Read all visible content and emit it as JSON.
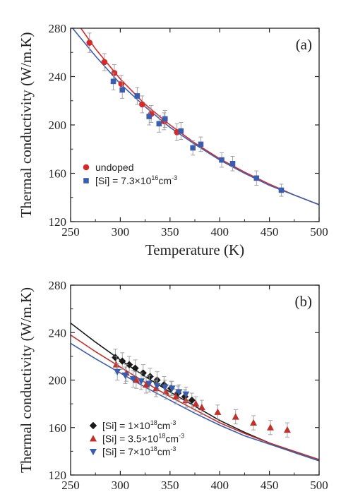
{
  "figure": {
    "ylabel": "Thermal conductivity (W/m.K)"
  },
  "chart_data": [
    {
      "type": "scatter",
      "panel_label": "(a)",
      "xlabel": "Temperature (K)",
      "ylabel": "Thermal conductivity (W/m.K)",
      "xlim": [
        250,
        500
      ],
      "ylim": [
        120,
        280
      ],
      "xticks": [
        250,
        300,
        350,
        400,
        450,
        500
      ],
      "yticks": [
        120,
        160,
        200,
        240,
        280
      ],
      "legend_position": "lower-left",
      "series": [
        {
          "name": "undoped",
          "marker": "circle",
          "color": "#d42a2a",
          "points": [
            {
              "x": 269,
              "y": 268,
              "err": 8
            },
            {
              "x": 284,
              "y": 252,
              "err": 7
            },
            {
              "x": 294,
              "y": 243,
              "err": 7
            },
            {
              "x": 301,
              "y": 234,
              "err": 7
            },
            {
              "x": 322,
              "y": 217,
              "err": 7
            },
            {
              "x": 331,
              "y": 209,
              "err": 7
            },
            {
              "x": 344,
              "y": 203,
              "err": 7
            },
            {
              "x": 357,
              "y": 194,
              "err": 7
            }
          ]
        },
        {
          "name_parts": [
            "[Si] = 7.3×10",
            "16",
            "cm",
            "-3"
          ],
          "marker": "square",
          "color": "#3a5dae",
          "points": [
            {
              "x": 293,
              "y": 236,
              "err": 7
            },
            {
              "x": 302,
              "y": 229,
              "err": 7
            },
            {
              "x": 317,
              "y": 224,
              "err": 7
            },
            {
              "x": 329,
              "y": 207,
              "err": 7
            },
            {
              "x": 339,
              "y": 201,
              "err": 7
            },
            {
              "x": 345,
              "y": 205,
              "err": 7
            },
            {
              "x": 361,
              "y": 195,
              "err": 7
            },
            {
              "x": 373,
              "y": 181,
              "err": 6
            },
            {
              "x": 381,
              "y": 184,
              "err": 6
            },
            {
              "x": 402,
              "y": 171,
              "err": 6
            },
            {
              "x": 413,
              "y": 168,
              "err": 6
            },
            {
              "x": 437,
              "y": 156,
              "err": 6
            },
            {
              "x": 462,
              "y": 146,
              "err": 5
            }
          ]
        }
      ],
      "fit_curves": [
        {
          "color": "#d42a2a",
          "x": [
            250,
            275,
            300,
            325,
            350,
            375,
            400,
            425,
            450,
            475,
            500
          ],
          "y": [
            292,
            263,
            238,
            217,
            200,
            185,
            172,
            161,
            151,
            142,
            134
          ]
        },
        {
          "color": "#3a5dae",
          "x": [
            250,
            275,
            300,
            325,
            350,
            375,
            400,
            425,
            450,
            475,
            500
          ],
          "y": [
            282,
            257,
            234,
            215,
            198,
            184,
            171,
            160,
            150,
            142,
            134
          ]
        }
      ]
    },
    {
      "type": "scatter",
      "panel_label": "(b)",
      "xlabel": "",
      "ylabel": "Thermal conductivity (W/m.K)",
      "xlim": [
        250,
        500
      ],
      "ylim": [
        120,
        280
      ],
      "xticks": [
        250,
        300,
        350,
        400,
        450,
        500
      ],
      "yticks": [
        120,
        160,
        200,
        240,
        280
      ],
      "legend_position": "lower-left",
      "series": [
        {
          "name_parts": [
            "[Si] = 1×10",
            "18",
            "cm",
            "-3"
          ],
          "marker": "diamond",
          "color": "#1a1a1a",
          "points": [
            {
              "x": 295,
              "y": 219,
              "err": 7
            },
            {
              "x": 302,
              "y": 216,
              "err": 7
            },
            {
              "x": 309,
              "y": 213,
              "err": 7
            },
            {
              "x": 315,
              "y": 210,
              "err": 7
            },
            {
              "x": 323,
              "y": 206,
              "err": 7
            },
            {
              "x": 330,
              "y": 203,
              "err": 7
            },
            {
              "x": 337,
              "y": 200,
              "err": 7
            },
            {
              "x": 344,
              "y": 196,
              "err": 7
            },
            {
              "x": 351,
              "y": 193,
              "err": 6
            },
            {
              "x": 358,
              "y": 189,
              "err": 6
            },
            {
              "x": 365,
              "y": 186,
              "err": 6
            },
            {
              "x": 372,
              "y": 183,
              "err": 6
            }
          ]
        },
        {
          "name_parts": [
            "[Si] = 3.5×10",
            "18",
            "cm",
            "-3"
          ],
          "marker": "triangle-up",
          "color": "#c0312b",
          "points": [
            {
              "x": 296,
              "y": 213,
              "err": 7
            },
            {
              "x": 306,
              "y": 206,
              "err": 7
            },
            {
              "x": 316,
              "y": 200,
              "err": 7
            },
            {
              "x": 326,
              "y": 196,
              "err": 7
            },
            {
              "x": 336,
              "y": 193,
              "err": 7
            },
            {
              "x": 346,
              "y": 190,
              "err": 6
            },
            {
              "x": 356,
              "y": 186,
              "err": 6
            },
            {
              "x": 366,
              "y": 183,
              "err": 6
            },
            {
              "x": 376,
              "y": 180,
              "err": 6
            },
            {
              "x": 382,
              "y": 177,
              "err": 6
            },
            {
              "x": 398,
              "y": 173,
              "err": 6
            },
            {
              "x": 416,
              "y": 169,
              "err": 6
            },
            {
              "x": 434,
              "y": 164,
              "err": 6
            },
            {
              "x": 451,
              "y": 160,
              "err": 6
            },
            {
              "x": 468,
              "y": 158,
              "err": 6
            }
          ]
        },
        {
          "name_parts": [
            "[Si] = 7×10",
            "18",
            "cm",
            "-3"
          ],
          "marker": "triangle-down",
          "color": "#3a5dae",
          "points": [
            {
              "x": 297,
              "y": 207,
              "err": 7
            },
            {
              "x": 305,
              "y": 204,
              "err": 7
            },
            {
              "x": 313,
              "y": 201,
              "err": 7
            },
            {
              "x": 321,
              "y": 199,
              "err": 7
            },
            {
              "x": 329,
              "y": 197,
              "err": 7
            },
            {
              "x": 337,
              "y": 195,
              "err": 7
            },
            {
              "x": 345,
              "y": 194,
              "err": 6
            },
            {
              "x": 352,
              "y": 193,
              "err": 6
            },
            {
              "x": 359,
              "y": 190,
              "err": 6
            },
            {
              "x": 366,
              "y": 188,
              "err": 6
            }
          ]
        }
      ],
      "fit_curves": [
        {
          "color": "#1a1a1a",
          "x": [
            250,
            275,
            300,
            325,
            350,
            375,
            400,
            425,
            450,
            475,
            500
          ],
          "y": [
            248,
            232,
            217,
            203,
            190,
            178,
            166,
            156,
            147,
            139,
            132
          ]
        },
        {
          "color": "#c0312b",
          "x": [
            250,
            275,
            300,
            325,
            350,
            375,
            400,
            425,
            450,
            475,
            500
          ],
          "y": [
            238,
            224,
            211,
            198,
            186,
            175,
            164,
            155,
            147,
            140,
            133
          ]
        },
        {
          "color": "#3a5dae",
          "x": [
            250,
            275,
            300,
            325,
            350,
            375,
            400,
            425,
            450,
            475,
            500
          ],
          "y": [
            231,
            218,
            206,
            194,
            183,
            172,
            162,
            153,
            146,
            139,
            132
          ]
        }
      ]
    }
  ]
}
